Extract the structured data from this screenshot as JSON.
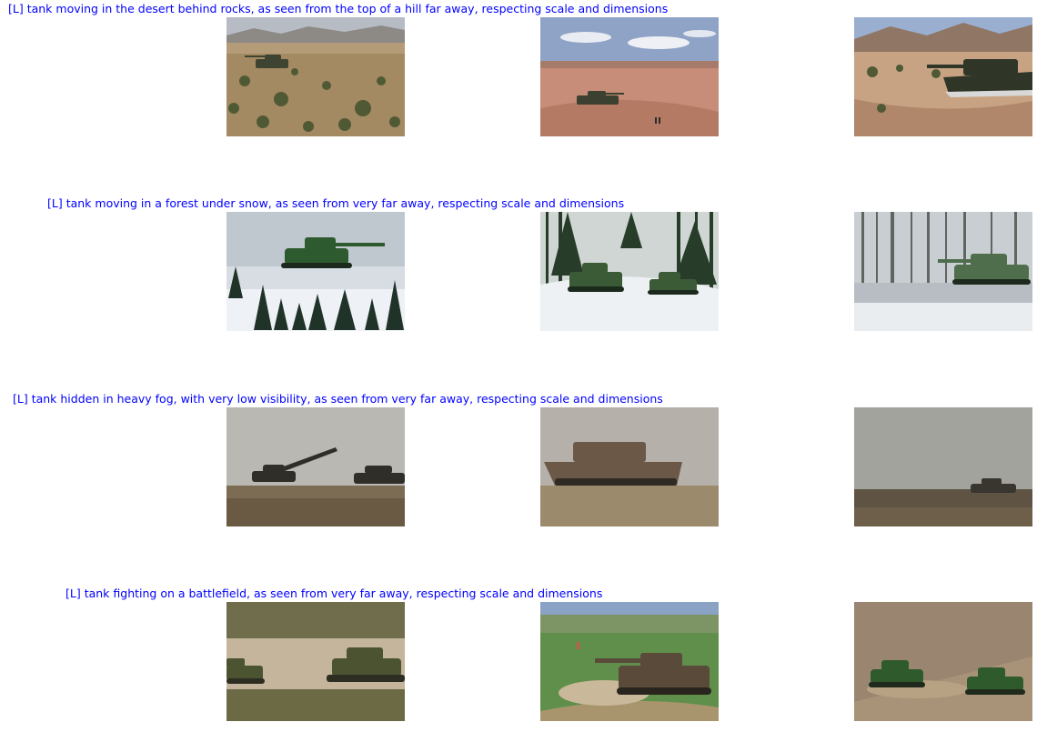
{
  "groups": [
    {
      "caption": "[L] tank moving in the desert behind rocks, as seen from the top of a hill far away, respecting scale and dimensions",
      "images": [
        {
          "icon": "desert-tank-image"
        },
        {
          "icon": "desert-tank-image"
        },
        {
          "icon": "desert-tank-image"
        }
      ]
    },
    {
      "caption": "[L] tank moving in a forest under snow, as seen from very far away, respecting scale and dimensions",
      "images": [
        {
          "icon": "snow-forest-tank-image"
        },
        {
          "icon": "snow-forest-tank-image"
        },
        {
          "icon": "snow-forest-tank-image"
        }
      ]
    },
    {
      "caption": "[L] tank hidden in heavy fog, with very low visibility, as seen from very far away, respecting scale and dimensions",
      "images": [
        {
          "icon": "fog-tank-image"
        },
        {
          "icon": "fog-tank-image"
        },
        {
          "icon": "fog-tank-image"
        }
      ]
    },
    {
      "caption": "[L] tank fighting on a battlefield, as seen from very far away, respecting scale and dimensions",
      "images": [
        {
          "icon": "battlefield-tank-image"
        },
        {
          "icon": "battlefield-tank-image"
        },
        {
          "icon": "battlefield-tank-image"
        }
      ]
    }
  ],
  "colors": {
    "caption": "#0000ff"
  }
}
